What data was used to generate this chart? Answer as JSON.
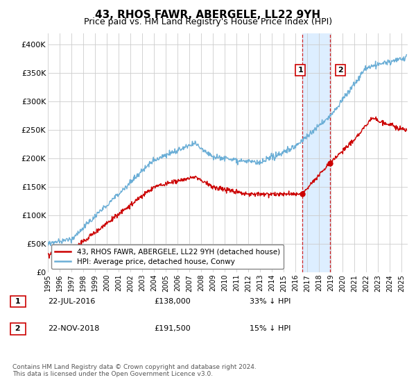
{
  "title": "43, RHOS FAWR, ABERGELE, LL22 9YH",
  "subtitle": "Price paid vs. HM Land Registry's House Price Index (HPI)",
  "legend_label_red": "43, RHOS FAWR, ABERGELE, LL22 9YH (detached house)",
  "legend_label_blue": "HPI: Average price, detached house, Conwy",
  "annotation1_label": "1",
  "annotation1_date": "22-JUL-2016",
  "annotation1_price": "£138,000",
  "annotation1_hpi": "33% ↓ HPI",
  "annotation2_label": "2",
  "annotation2_date": "22-NOV-2018",
  "annotation2_price": "£191,500",
  "annotation2_hpi": "15% ↓ HPI",
  "footer": "Contains HM Land Registry data © Crown copyright and database right 2024.\nThis data is licensed under the Open Government Licence v3.0.",
  "ylim": [
    0,
    420000
  ],
  "yticks": [
    0,
    50000,
    100000,
    150000,
    200000,
    250000,
    300000,
    350000,
    400000
  ],
  "ytick_labels": [
    "£0",
    "£50K",
    "£100K",
    "£150K",
    "£200K",
    "£250K",
    "£300K",
    "£350K",
    "£400K"
  ],
  "hpi_color": "#6baed6",
  "sale_color": "#cc0000",
  "vline_color": "#cc0000",
  "highlight_color": "#ddeeff",
  "sale1_x": 2016.55,
  "sale1_y": 138000,
  "sale2_x": 2018.9,
  "sale2_y": 191500,
  "xmin": 1995,
  "xmax": 2025.5
}
